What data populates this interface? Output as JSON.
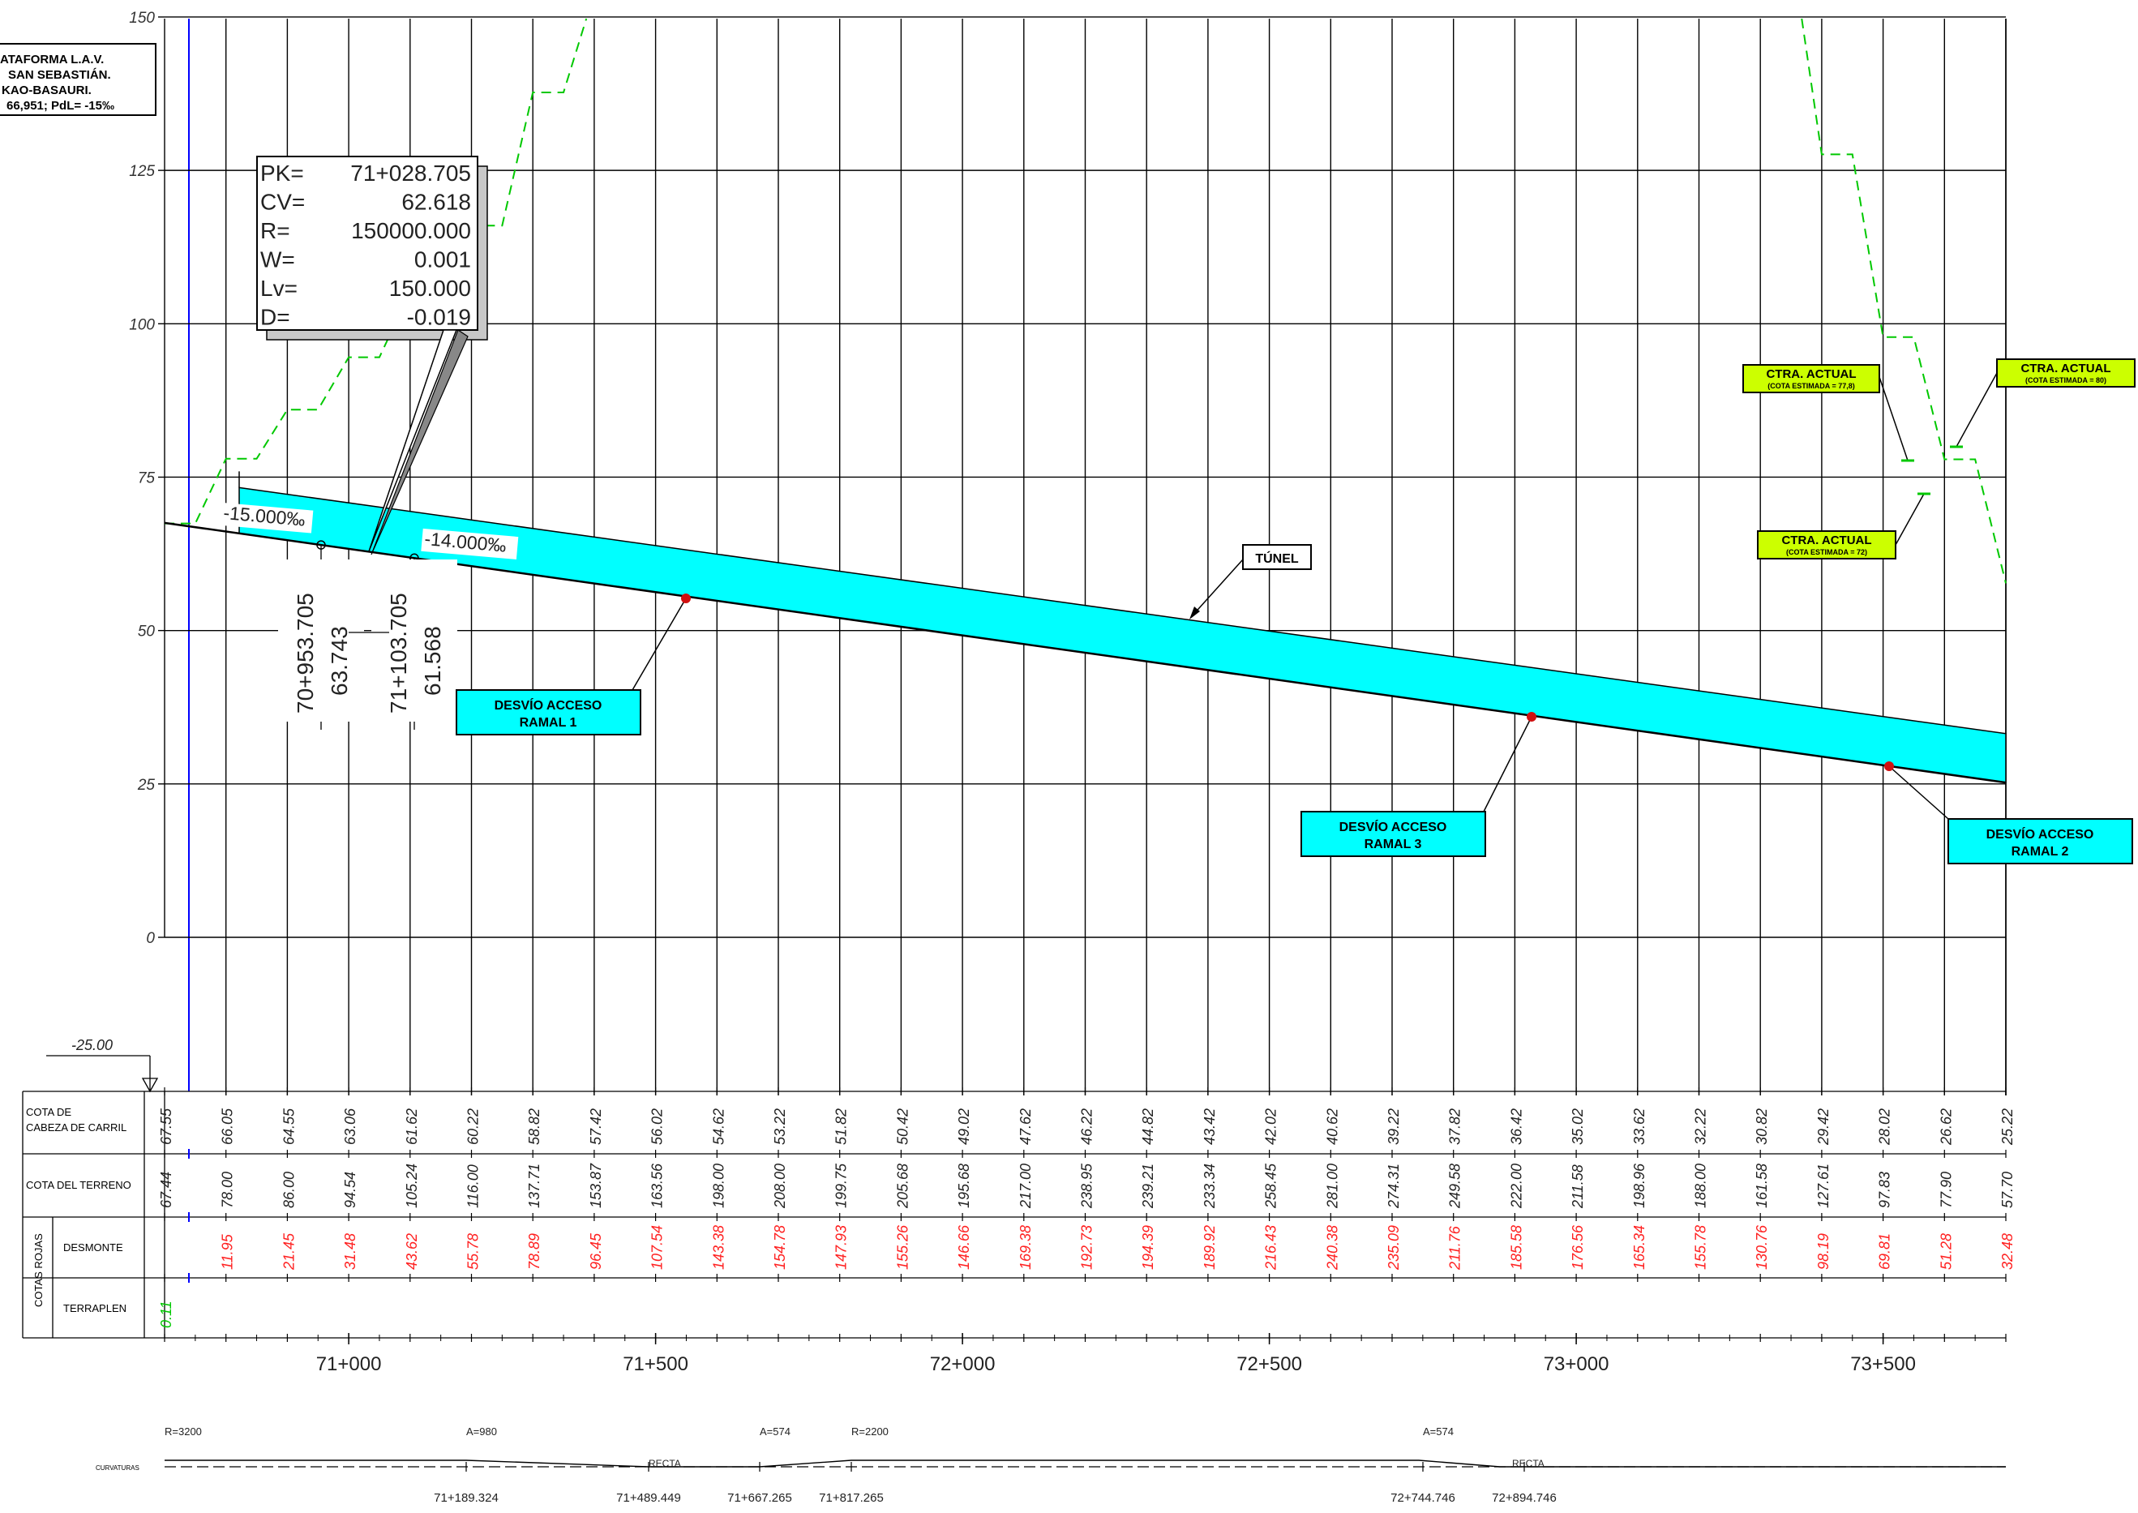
{
  "title_block": {
    "lines": [
      "ATAFORMA L.A.V.",
      "SAN SEBASTIÁN.",
      "KAO-BASAURI.",
      "66,951; PdL= -15‰"
    ]
  },
  "chart_data": {
    "type": "line",
    "ylim": [
      0,
      150
    ],
    "yticks": [
      "150",
      "125",
      "100",
      "75",
      "50",
      "25",
      "0"
    ],
    "xlim_pk": [
      70700,
      73700
    ],
    "chainage_labels": [
      "71+000",
      "71+500",
      "72+000",
      "72+500",
      "73+000",
      "73+500"
    ],
    "reference_level": "-25.00",
    "table_headers": {
      "cota_carril": [
        "COTA  DE",
        "CABEZA  DE  CARRIL"
      ],
      "cota_terreno": "COTA  DEL  TERRENO",
      "cotas_rojas": "COTAS  ROJAS",
      "desmonte": "DESMONTE",
      "terraplen": "TERRAPLEN"
    },
    "cota_carril": [
      "67.55",
      "66.05",
      "64.55",
      "63.06",
      "61.62",
      "60.22",
      "58.82",
      "57.42",
      "56.02",
      "54.62",
      "53.22",
      "51.82",
      "50.42",
      "49.02",
      "47.62",
      "46.22",
      "44.82",
      "43.42",
      "42.02",
      "40.62",
      "39.22",
      "37.82",
      "36.42",
      "35.02",
      "33.62",
      "32.22",
      "30.82",
      "29.42",
      "28.02",
      "26.62",
      "25.22"
    ],
    "cota_terreno": [
      "67.44",
      "78.00",
      "86.00",
      "94.54",
      "105.24",
      "116.00",
      "137.71",
      "153.87",
      "163.56",
      "198.00",
      "208.00",
      "199.75",
      "205.68",
      "195.68",
      "217.00",
      "238.95",
      "239.21",
      "233.34",
      "258.45",
      "281.00",
      "274.31",
      "249.58",
      "222.00",
      "211.58",
      "198.96",
      "188.00",
      "161.58",
      "127.61",
      "97.83",
      "77.90",
      "57.70"
    ],
    "desmonte": [
      "",
      "11.95",
      "21.45",
      "31.48",
      "43.62",
      "55.78",
      "78.89",
      "96.45",
      "107.54",
      "143.38",
      "154.78",
      "147.93",
      "155.26",
      "146.66",
      "169.38",
      "192.73",
      "194.39",
      "189.92",
      "216.43",
      "240.38",
      "235.09",
      "211.76",
      "185.58",
      "176.56",
      "165.34",
      "155.78",
      "130.76",
      "98.19",
      "69.81",
      "51.28",
      "32.48"
    ],
    "terraplen": [
      "0.11"
    ],
    "grade_labels": [
      "-15.000‰",
      "-14.000‰"
    ],
    "vertical_points": [
      {
        "pk": "70+953.705",
        "cota": "63.743"
      },
      {
        "pk": "71+103.705",
        "cota": "61.568"
      }
    ],
    "vertical_curve": {
      "rows": [
        {
          "key": "PK=",
          "value": "71+028.705"
        },
        {
          "key": "CV=",
          "value": "62.618"
        },
        {
          "key": "R=",
          "value": "150000.000"
        },
        {
          "key": "W=",
          "value": "0.001"
        },
        {
          "key": "Lv=",
          "value": "150.000"
        },
        {
          "key": "D=",
          "value": "-0.019"
        }
      ]
    },
    "tunnel_label": "TÚNEL",
    "desvio": [
      {
        "line1": "DESVÍO ACCESO",
        "line2": "RAMAL 1"
      },
      {
        "line1": "DESVÍO ACCESO",
        "line2": "RAMAL 3"
      },
      {
        "line1": "DESVÍO ACCESO",
        "line2": "RAMAL 2"
      }
    ],
    "carretera": [
      {
        "line1": "CTRA. ACTUAL",
        "line2": "(COTA ESTIMADA = 77,8)"
      },
      {
        "line1": "CTRA. ACTUAL",
        "line2": "(COTA ESTIMADA = 80)"
      },
      {
        "line1": "CTRA. ACTUAL",
        "line2": "(COTA ESTIMADA = 72)"
      }
    ],
    "curvaturas": {
      "label": "CURVATURAS",
      "top": [
        "R=3200",
        "A=980",
        "A=574",
        "R=2200",
        "A=574"
      ],
      "recta": [
        "RECTA",
        "RECTA"
      ],
      "pks": [
        "71+189.324",
        "71+489.449",
        "71+667.265",
        "71+817.265",
        "72+744.746",
        "72+894.746"
      ]
    },
    "colors": {
      "grid": "#000000",
      "tunnel_fill": "#00ffff",
      "terrain": "#00c800",
      "red_values": "#ff2020",
      "green_values": "#00c800",
      "ctra_fill": "#ccff00",
      "axis_blue": "#0000ff"
    }
  }
}
